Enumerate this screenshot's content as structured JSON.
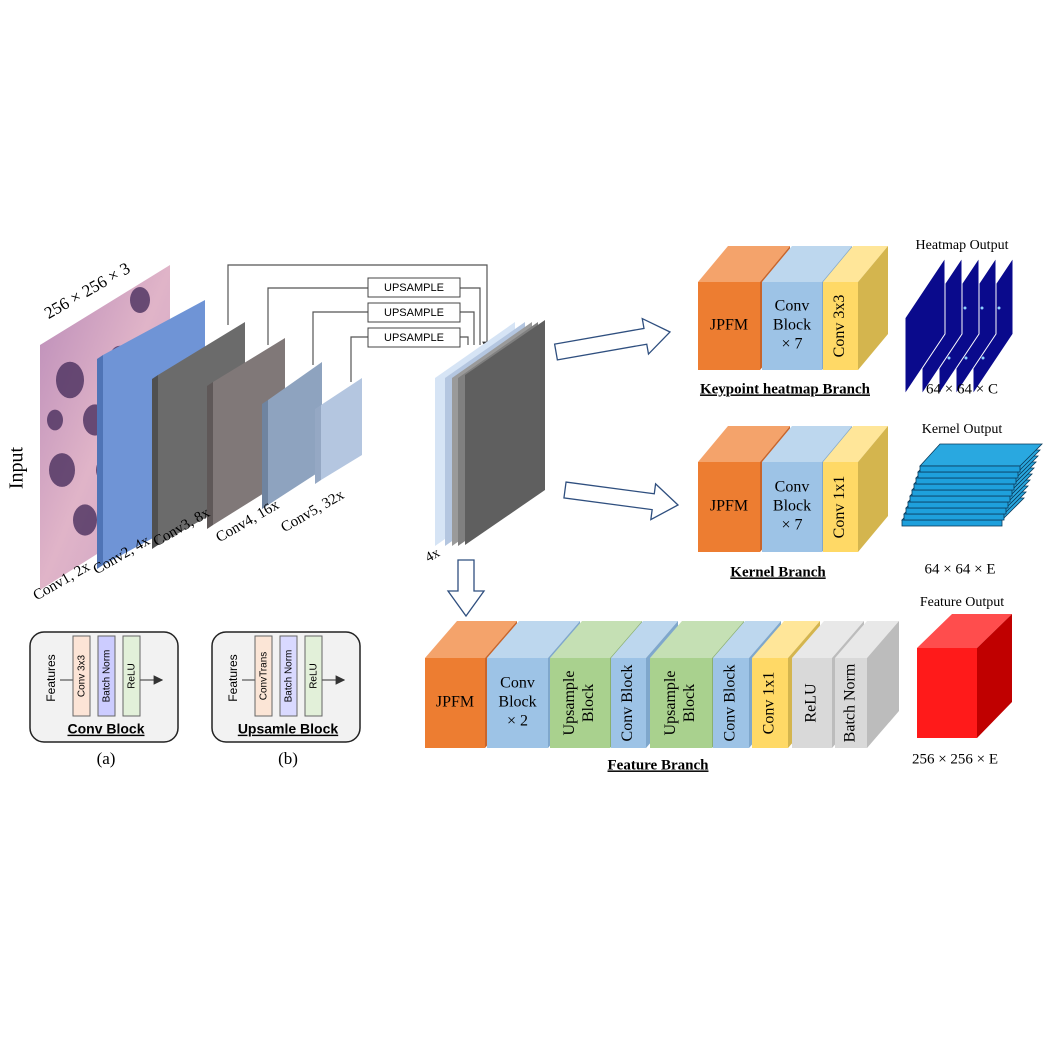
{
  "input": {
    "label": "Input",
    "size": "256 × 256 × 3"
  },
  "backbone": {
    "layers": [
      "Conv1, 2x",
      "Conv2, 4x",
      "Conv3, 8x",
      "Conv4, 16x",
      "Conv5, 32x"
    ],
    "upsample": [
      "UPSAMPLE",
      "UPSAMPLE",
      "UPSAMPLE"
    ],
    "merged": "4x"
  },
  "branches": [
    {
      "title": "Keypoint heatmap Branch",
      "blocks": [
        [
          "JPFM"
        ],
        [
          "Conv",
          "Block",
          "× 7"
        ],
        [
          "Conv 3x3"
        ]
      ],
      "output_title": "Heatmap Output",
      "output_shape": "64 × 64 × C"
    },
    {
      "title": "Kernel Branch",
      "blocks": [
        [
          "JPFM"
        ],
        [
          "Conv",
          "Block",
          "× 7"
        ],
        [
          "Conv 1x1"
        ]
      ],
      "output_title": "Kernel Output",
      "output_shape": "64 × 64 × E"
    },
    {
      "title": "Feature Branch",
      "blocks": [
        [
          "JPFM"
        ],
        [
          "Conv",
          "Block",
          "× 2"
        ],
        [
          "Upsample",
          "Block"
        ],
        [
          "Conv Block"
        ],
        [
          "Upsample",
          "Block"
        ],
        [
          "Conv Block"
        ],
        [
          "Conv 1x1"
        ],
        [
          "ReLU"
        ],
        [
          "Batch Norm"
        ]
      ],
      "output_title": "Feature Output",
      "output_shape": "256 × 256 × E"
    }
  ],
  "legend": [
    {
      "input": "Features",
      "steps": [
        "Conv 3x3",
        "Batch Norm",
        "ReLU"
      ],
      "title": "Conv Block",
      "caption": "(a)"
    },
    {
      "input": "Features",
      "steps": [
        "ConvTrans",
        "Batch Norm",
        "ReLU"
      ],
      "title": "Upsamle Block",
      "caption": "(b)"
    }
  ]
}
